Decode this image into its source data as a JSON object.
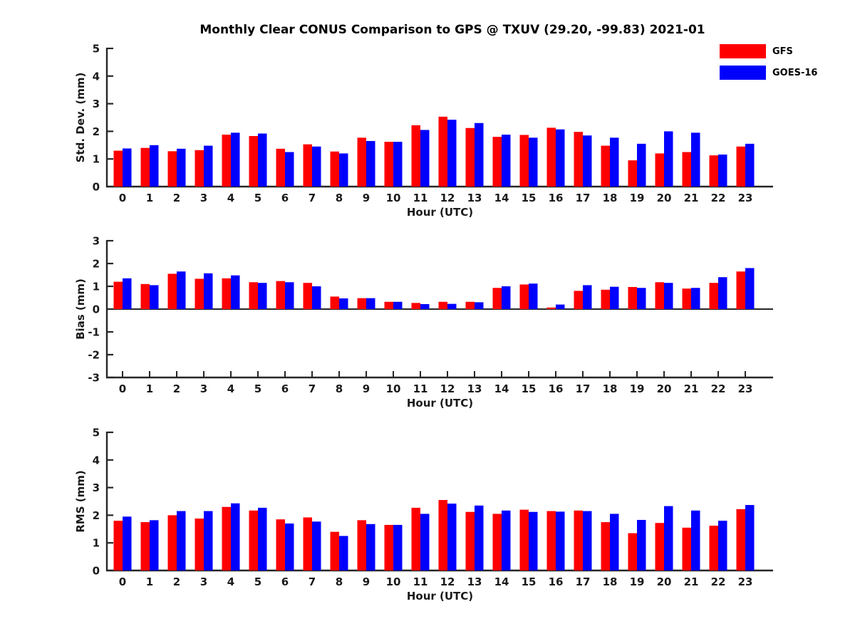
{
  "page_title": "Monthly Clear CONUS Comparison to GPS @ TXUV (29.20, -99.83) 2021-01",
  "legend": {
    "position": "top-right",
    "items": [
      {
        "label": "GFS",
        "color": "#ff0000"
      },
      {
        "label": "GOES-16",
        "color": "#0000ff"
      }
    ]
  },
  "colors": {
    "gfs": "#ff0000",
    "goes16": "#0000ff",
    "axis": "#262626",
    "text": "#1a1a1a"
  },
  "chart_data": [
    {
      "type": "bar",
      "title": "",
      "ylabel": "Std. Dev. (mm)",
      "xlabel": "Hour (UTC)",
      "grid": false,
      "legend_position": "top-right",
      "categories": [
        "0",
        "1",
        "2",
        "3",
        "4",
        "5",
        "6",
        "7",
        "8",
        "9",
        "10",
        "11",
        "12",
        "13",
        "14",
        "15",
        "16",
        "17",
        "18",
        "19",
        "20",
        "21",
        "22",
        "23"
      ],
      "ylim": [
        0,
        5
      ],
      "yticks": [
        0,
        1,
        2,
        3,
        4,
        5
      ],
      "series": [
        {
          "name": "GFS",
          "color": "#ff0000",
          "values": [
            1.3,
            1.4,
            1.28,
            1.32,
            1.88,
            1.83,
            1.37,
            1.53,
            1.27,
            1.77,
            1.62,
            2.22,
            2.53,
            2.12,
            1.8,
            1.87,
            2.13,
            1.98,
            1.48,
            0.95,
            1.2,
            1.25,
            1.13,
            1.45
          ]
        },
        {
          "name": "GOES-16",
          "color": "#0000ff",
          "values": [
            1.38,
            1.5,
            1.37,
            1.48,
            1.95,
            1.92,
            1.25,
            1.45,
            1.2,
            1.65,
            1.62,
            2.05,
            2.42,
            2.3,
            1.88,
            1.77,
            2.07,
            1.85,
            1.77,
            1.55,
            2.0,
            1.95,
            1.16,
            1.55
          ]
        }
      ]
    },
    {
      "type": "bar",
      "title": "",
      "ylabel": "Bias (mm)",
      "xlabel": "Hour (UTC)",
      "grid": false,
      "categories": [
        "0",
        "1",
        "2",
        "3",
        "4",
        "5",
        "6",
        "7",
        "8",
        "9",
        "10",
        "11",
        "12",
        "13",
        "14",
        "15",
        "16",
        "17",
        "18",
        "19",
        "20",
        "21",
        "22",
        "23"
      ],
      "ylim": [
        -3,
        3
      ],
      "yticks": [
        -3,
        -2,
        -1,
        0,
        1,
        2,
        3
      ],
      "series": [
        {
          "name": "GFS",
          "color": "#ff0000",
          "values": [
            1.2,
            1.1,
            1.55,
            1.33,
            1.35,
            1.18,
            1.23,
            1.15,
            0.55,
            0.48,
            0.32,
            0.27,
            0.32,
            0.32,
            0.93,
            1.08,
            0.07,
            0.8,
            0.85,
            0.97,
            1.18,
            0.9,
            1.15,
            1.65
          ]
        },
        {
          "name": "GOES-16",
          "color": "#0000ff",
          "values": [
            1.35,
            1.05,
            1.65,
            1.57,
            1.48,
            1.15,
            1.18,
            1.0,
            0.47,
            0.48,
            0.32,
            0.22,
            0.23,
            0.3,
            1.0,
            1.12,
            0.2,
            1.05,
            0.98,
            0.93,
            1.15,
            0.93,
            1.4,
            1.8
          ]
        }
      ]
    },
    {
      "type": "bar",
      "title": "",
      "ylabel": "RMS (mm)",
      "xlabel": "Hour (UTC)",
      "grid": false,
      "categories": [
        "0",
        "1",
        "2",
        "3",
        "4",
        "5",
        "6",
        "7",
        "8",
        "9",
        "10",
        "11",
        "12",
        "13",
        "14",
        "15",
        "16",
        "17",
        "18",
        "19",
        "20",
        "21",
        "22",
        "23"
      ],
      "ylim": [
        0,
        5
      ],
      "yticks": [
        0,
        1,
        2,
        3,
        4,
        5
      ],
      "series": [
        {
          "name": "GFS",
          "color": "#ff0000",
          "values": [
            1.8,
            1.75,
            2.0,
            1.88,
            2.3,
            2.17,
            1.85,
            1.92,
            1.4,
            1.82,
            1.65,
            2.27,
            2.55,
            2.12,
            2.05,
            2.2,
            2.15,
            2.17,
            1.75,
            1.35,
            1.72,
            1.55,
            1.62,
            2.22
          ]
        },
        {
          "name": "GOES-16",
          "color": "#0000ff",
          "values": [
            1.95,
            1.82,
            2.15,
            2.15,
            2.43,
            2.27,
            1.7,
            1.77,
            1.25,
            1.68,
            1.65,
            2.05,
            2.42,
            2.35,
            2.17,
            2.12,
            2.13,
            2.15,
            2.05,
            1.83,
            2.33,
            2.17,
            1.8,
            2.37
          ]
        }
      ]
    }
  ]
}
